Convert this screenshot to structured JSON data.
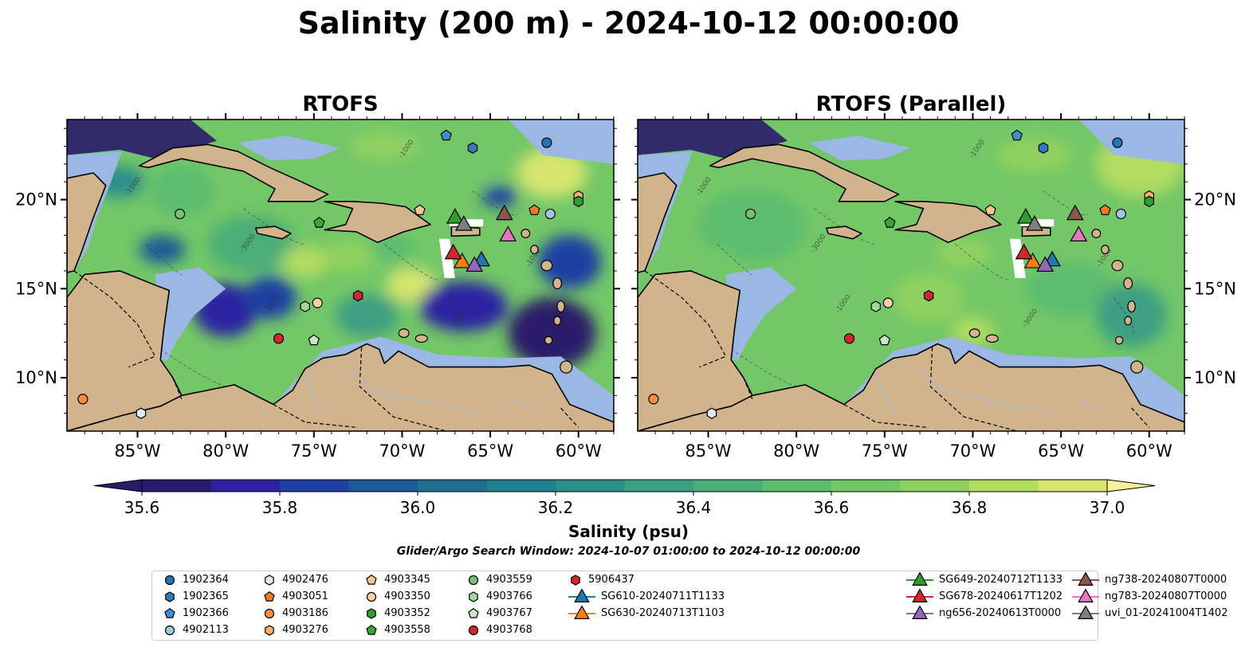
{
  "title": "Salinity (200 m) - 2024-10-12 00:00:00",
  "panels": [
    {
      "title": "RTOFS",
      "variant": "main"
    },
    {
      "title": "RTOFS (Parallel)",
      "variant": "parallel"
    }
  ],
  "axes": {
    "x_ticks": [
      "85°W",
      "80°W",
      "75°W",
      "70°W",
      "65°W",
      "60°W"
    ],
    "y_ticks": [
      "20°N",
      "15°N",
      "10°N"
    ],
    "lon_range": [
      -89,
      -58
    ],
    "lat_range": [
      7,
      24.5
    ]
  },
  "contour_labels": [
    "-1000",
    "-3000"
  ],
  "colorbar": {
    "ticks": [
      "35.6",
      "35.8",
      "36.0",
      "36.2",
      "36.4",
      "36.6",
      "36.8",
      "37.0"
    ],
    "label": "Salinity (psu)",
    "range": [
      35.6,
      37.0
    ],
    "colors": [
      "#2a1a6b",
      "#2c22a1",
      "#1f3fa1",
      "#1b5a96",
      "#1e6f8f",
      "#227f8d",
      "#2a8f8a",
      "#3c9f82",
      "#4bae78",
      "#5cbc6f",
      "#73c767",
      "#8fd160",
      "#b3dc62",
      "#d6e56e",
      "#f7ef9c"
    ]
  },
  "search_window": "Glider/Argo Search Window: 2024-10-07 01:00:00 to 2024-10-12 00:00:00",
  "legend": [
    {
      "label": "1902364",
      "marker": "circle",
      "color": "#1f77b4"
    },
    {
      "label": "1902365",
      "marker": "hexagon",
      "color": "#2a7bc0"
    },
    {
      "label": "1902366",
      "marker": "pentagon",
      "color": "#3a8fd0"
    },
    {
      "label": "4902113",
      "marker": "circle",
      "color": "#9ecae1"
    },
    {
      "label": "4902476",
      "marker": "hexagon",
      "color": "#deebf7"
    },
    {
      "label": "4903051",
      "marker": "pentagon",
      "color": "#f17a1a"
    },
    {
      "label": "4903186",
      "marker": "circle",
      "color": "#fd8d3c"
    },
    {
      "label": "4903276",
      "marker": "hexagon",
      "color": "#fdae6b"
    },
    {
      "label": "4903345",
      "marker": "pentagon",
      "color": "#fdc68c"
    },
    {
      "label": "4903350",
      "marker": "circle",
      "color": "#fdd0a2"
    },
    {
      "label": "4903352",
      "marker": "hexagon",
      "color": "#2ca02c"
    },
    {
      "label": "4903558",
      "marker": "pentagon",
      "color": "#36a836"
    },
    {
      "label": "4903559",
      "marker": "circle",
      "color": "#74c476"
    },
    {
      "label": "4903766",
      "marker": "hexagon",
      "color": "#a1d99b"
    },
    {
      "label": "4903767",
      "marker": "pentagon",
      "color": "#c7e9c0"
    },
    {
      "label": "4903768",
      "marker": "circle",
      "color": "#d62728"
    },
    {
      "label": "5906437",
      "marker": "hexagon",
      "color": "#d62728"
    },
    {
      "label": "SG610-20240711T1133",
      "marker": "triangle-line",
      "color": "#1f77b4"
    },
    {
      "label": "SG630-20240713T1103",
      "marker": "triangle-line",
      "color": "#ff7f0e"
    },
    {
      "label": "SG649-20240712T1133",
      "marker": "triangle-line",
      "color": "#2ca02c"
    },
    {
      "label": "SG678-20240617T1202",
      "marker": "triangle-line",
      "color": "#d62728"
    },
    {
      "label": "ng656-20240613T0000",
      "marker": "triangle-line",
      "color": "#9467bd"
    },
    {
      "label": "ng738-20240807T0000",
      "marker": "triangle-line",
      "color": "#8c564b"
    },
    {
      "label": "ng783-20240807T0000",
      "marker": "triangle-line",
      "color": "#e377c2"
    },
    {
      "label": "uvi_01-20241004T1402",
      "marker": "triangle-line",
      "color": "#7f7f7f"
    }
  ],
  "floats": [
    {
      "id": "1902364",
      "lon": -61.8,
      "lat": 23.2
    },
    {
      "id": "1902365",
      "lon": -66.0,
      "lat": 22.9
    },
    {
      "id": "1902366",
      "lon": -67.5,
      "lat": 23.6
    },
    {
      "id": "4902113",
      "lon": -61.6,
      "lat": 19.2
    },
    {
      "id": "4902476",
      "lon": -84.8,
      "lat": 8.0
    },
    {
      "id": "4903051",
      "lon": -62.5,
      "lat": 19.4
    },
    {
      "id": "4903186",
      "lon": -88.1,
      "lat": 8.8
    },
    {
      "id": "4903276",
      "lon": -60.0,
      "lat": 20.2
    },
    {
      "id": "4903345",
      "lon": -69.0,
      "lat": 19.4
    },
    {
      "id": "4903350",
      "lon": -74.8,
      "lat": 14.2
    },
    {
      "id": "4903352",
      "lon": -60.0,
      "lat": 19.9
    },
    {
      "id": "4903558",
      "lon": -74.7,
      "lat": 18.7
    },
    {
      "id": "4903559",
      "lon": -82.6,
      "lat": 19.2
    },
    {
      "id": "4903766",
      "lon": -75.5,
      "lat": 14.0
    },
    {
      "id": "4903767",
      "lon": -75.0,
      "lat": 12.1
    },
    {
      "id": "4903768",
      "lon": -77.0,
      "lat": 12.2
    },
    {
      "id": "5906437",
      "lon": -72.5,
      "lat": 14.6
    }
  ],
  "gliders": [
    {
      "id": "SG610-20240711T1133",
      "lon": -65.5,
      "lat": 16.6
    },
    {
      "id": "SG630-20240713T1103",
      "lon": -66.6,
      "lat": 16.5
    },
    {
      "id": "SG649-20240712T1133",
      "lon": -67.0,
      "lat": 19.0
    },
    {
      "id": "SG678-20240617T1202",
      "lon": -67.1,
      "lat": 17.0
    },
    {
      "id": "ng656-20240613T0000",
      "lon": -65.9,
      "lat": 16.3
    },
    {
      "id": "ng738-20240807T0000",
      "lon": -64.2,
      "lat": 19.2
    },
    {
      "id": "ng783-20240807T0000",
      "lon": -64.0,
      "lat": 18.0
    },
    {
      "id": "uvi_01-20241004T1402",
      "lon": -66.5,
      "lat": 18.6
    }
  ]
}
